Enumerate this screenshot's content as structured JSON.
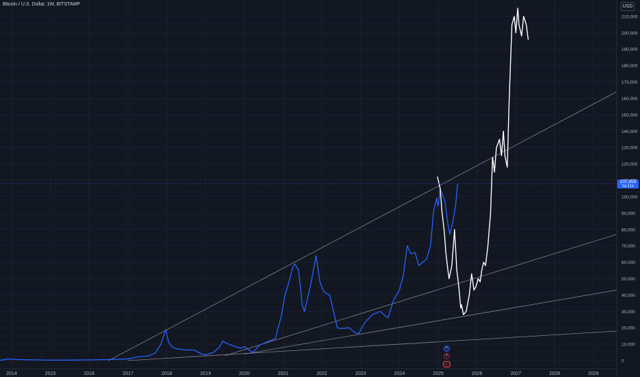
{
  "header": {
    "title": "Bitcoin / U.S. Dollar, 1W, BITSTAMP",
    "currency_button": "USD"
  },
  "price_tag": {
    "price": "107,959",
    "countdown": "5d 11h"
  },
  "colors": {
    "background": "#131722",
    "price_line": "#2962ff",
    "projection": "#ffffff",
    "trendline": "#9598a1",
    "axis_text": "#b2b5be"
  },
  "events": [
    {
      "icon": "circle-dot-icon",
      "color": "#2962ff"
    },
    {
      "icon": "circle-dot-icon",
      "color": "#9c2a4a"
    },
    {
      "icon": "us-flag-icon",
      "color": "#f23645"
    }
  ],
  "chart_data": {
    "type": "line",
    "y_scale": "linear",
    "ylim": [
      -5000,
      220000
    ],
    "xlim": [
      2013.7,
      2029.6
    ],
    "grid": true,
    "x_ticks": [
      "2014",
      "2015",
      "2016",
      "2017",
      "2018",
      "2019",
      "2020",
      "2021",
      "2022",
      "2023",
      "2024",
      "2025",
      "2026",
      "2027",
      "2028",
      "2029"
    ],
    "y_ticks": [
      "0",
      "10,000",
      "20,000",
      "30,000",
      "40,000",
      "50,000",
      "60,000",
      "70,000",
      "80,000",
      "90,000",
      "100,000",
      "110,000",
      "120,000",
      "130,000",
      "140,000",
      "150,000",
      "160,000",
      "170,000",
      "180,000",
      "190,000",
      "200,000",
      "210,000"
    ],
    "series": [
      {
        "kind": "price",
        "x": [
          2013.7,
          2013.9,
          2014.0,
          2014.3,
          2014.6,
          2015.0,
          2015.5,
          2016.0,
          2016.5,
          2017.0,
          2017.3,
          2017.5,
          2017.7,
          2017.85,
          2017.97,
          2018.05,
          2018.15,
          2018.3,
          2018.5,
          2018.7,
          2018.9,
          2019.0,
          2019.2,
          2019.35,
          2019.45,
          2019.5,
          2019.7,
          2019.9,
          2020.0,
          2020.15,
          2020.22,
          2020.4,
          2020.6,
          2020.8,
          2020.95,
          2021.05,
          2021.15,
          2021.25,
          2021.3,
          2021.4,
          2021.5,
          2021.55,
          2021.7,
          2021.85,
          2021.95,
          2022.05,
          2022.2,
          2022.3,
          2022.4,
          2022.5,
          2022.7,
          2022.85,
          2022.95,
          2023.1,
          2023.3,
          2023.5,
          2023.7,
          2023.85,
          2024.0,
          2024.1,
          2024.2,
          2024.3,
          2024.4,
          2024.5,
          2024.6,
          2024.7,
          2024.8,
          2024.88,
          2024.96,
          2025.0,
          2025.05,
          2025.1,
          2025.18,
          2025.25,
          2025.3,
          2025.38,
          2025.45,
          2025.5
        ],
        "y": [
          150,
          1000,
          800,
          600,
          450,
          250,
          300,
          430,
          650,
          1000,
          2500,
          2700,
          4500,
          10000,
          19000,
          11000,
          8000,
          7000,
          6500,
          6500,
          4000,
          3500,
          5000,
          8000,
          12000,
          11000,
          9000,
          7500,
          8500,
          6000,
          5000,
          9500,
          11500,
          13500,
          27000,
          40000,
          48000,
          57000,
          59000,
          55000,
          33000,
          30000,
          45000,
          64000,
          48000,
          42000,
          40000,
          30000,
          20000,
          19500,
          20000,
          17000,
          16500,
          23000,
          28000,
          30000,
          26000,
          37000,
          43000,
          52000,
          70000,
          65000,
          66000,
          58000,
          60000,
          62000,
          70000,
          91000,
          99000,
          94000,
          105000,
          102000,
          96000,
          83000,
          77000,
          85000,
          95000,
          107959
        ]
      },
      {
        "kind": "projection",
        "x": [
          2024.98,
          2025.05,
          2025.1,
          2025.15,
          2025.2,
          2025.25,
          2025.28,
          2025.35,
          2025.42,
          2025.48,
          2025.53,
          2025.58,
          2025.6,
          2025.65,
          2025.72,
          2025.8,
          2025.86,
          2025.92,
          2025.97,
          2026.03,
          2026.08,
          2026.12,
          2026.17,
          2026.22,
          2026.28,
          2026.35,
          2026.4,
          2026.45,
          2026.5,
          2026.58,
          2026.63,
          2026.68,
          2026.72,
          2026.78,
          2026.83,
          2026.9,
          2026.96,
          2027.0,
          2027.05,
          2027.08,
          2027.15,
          2027.2,
          2027.27,
          2027.32
        ],
        "y": [
          112000,
          105000,
          90000,
          80000,
          65000,
          55000,
          50000,
          58000,
          80000,
          55000,
          45000,
          32000,
          34000,
          28000,
          30000,
          40000,
          53000,
          43000,
          45000,
          50000,
          48000,
          55000,
          60000,
          58000,
          70000,
          90000,
          124000,
          115000,
          130000,
          135000,
          125000,
          140000,
          125000,
          118000,
          160000,
          205000,
          210000,
          200000,
          215000,
          205000,
          198000,
          210000,
          205000,
          196000
        ]
      },
      {
        "kind": "trendline",
        "x": [
          2016.5,
          2029.6
        ],
        "y": [
          0,
          164000
        ]
      },
      {
        "kind": "trendline",
        "x": [
          2019.5,
          2029.6
        ],
        "y": [
          3000,
          77000
        ]
      },
      {
        "kind": "trendline",
        "x": [
          2020.0,
          2029.6
        ],
        "y": [
          4000,
          43000
        ]
      },
      {
        "kind": "trendline",
        "x": [
          2017.0,
          2029.6
        ],
        "y": [
          0,
          18000
        ]
      }
    ]
  }
}
